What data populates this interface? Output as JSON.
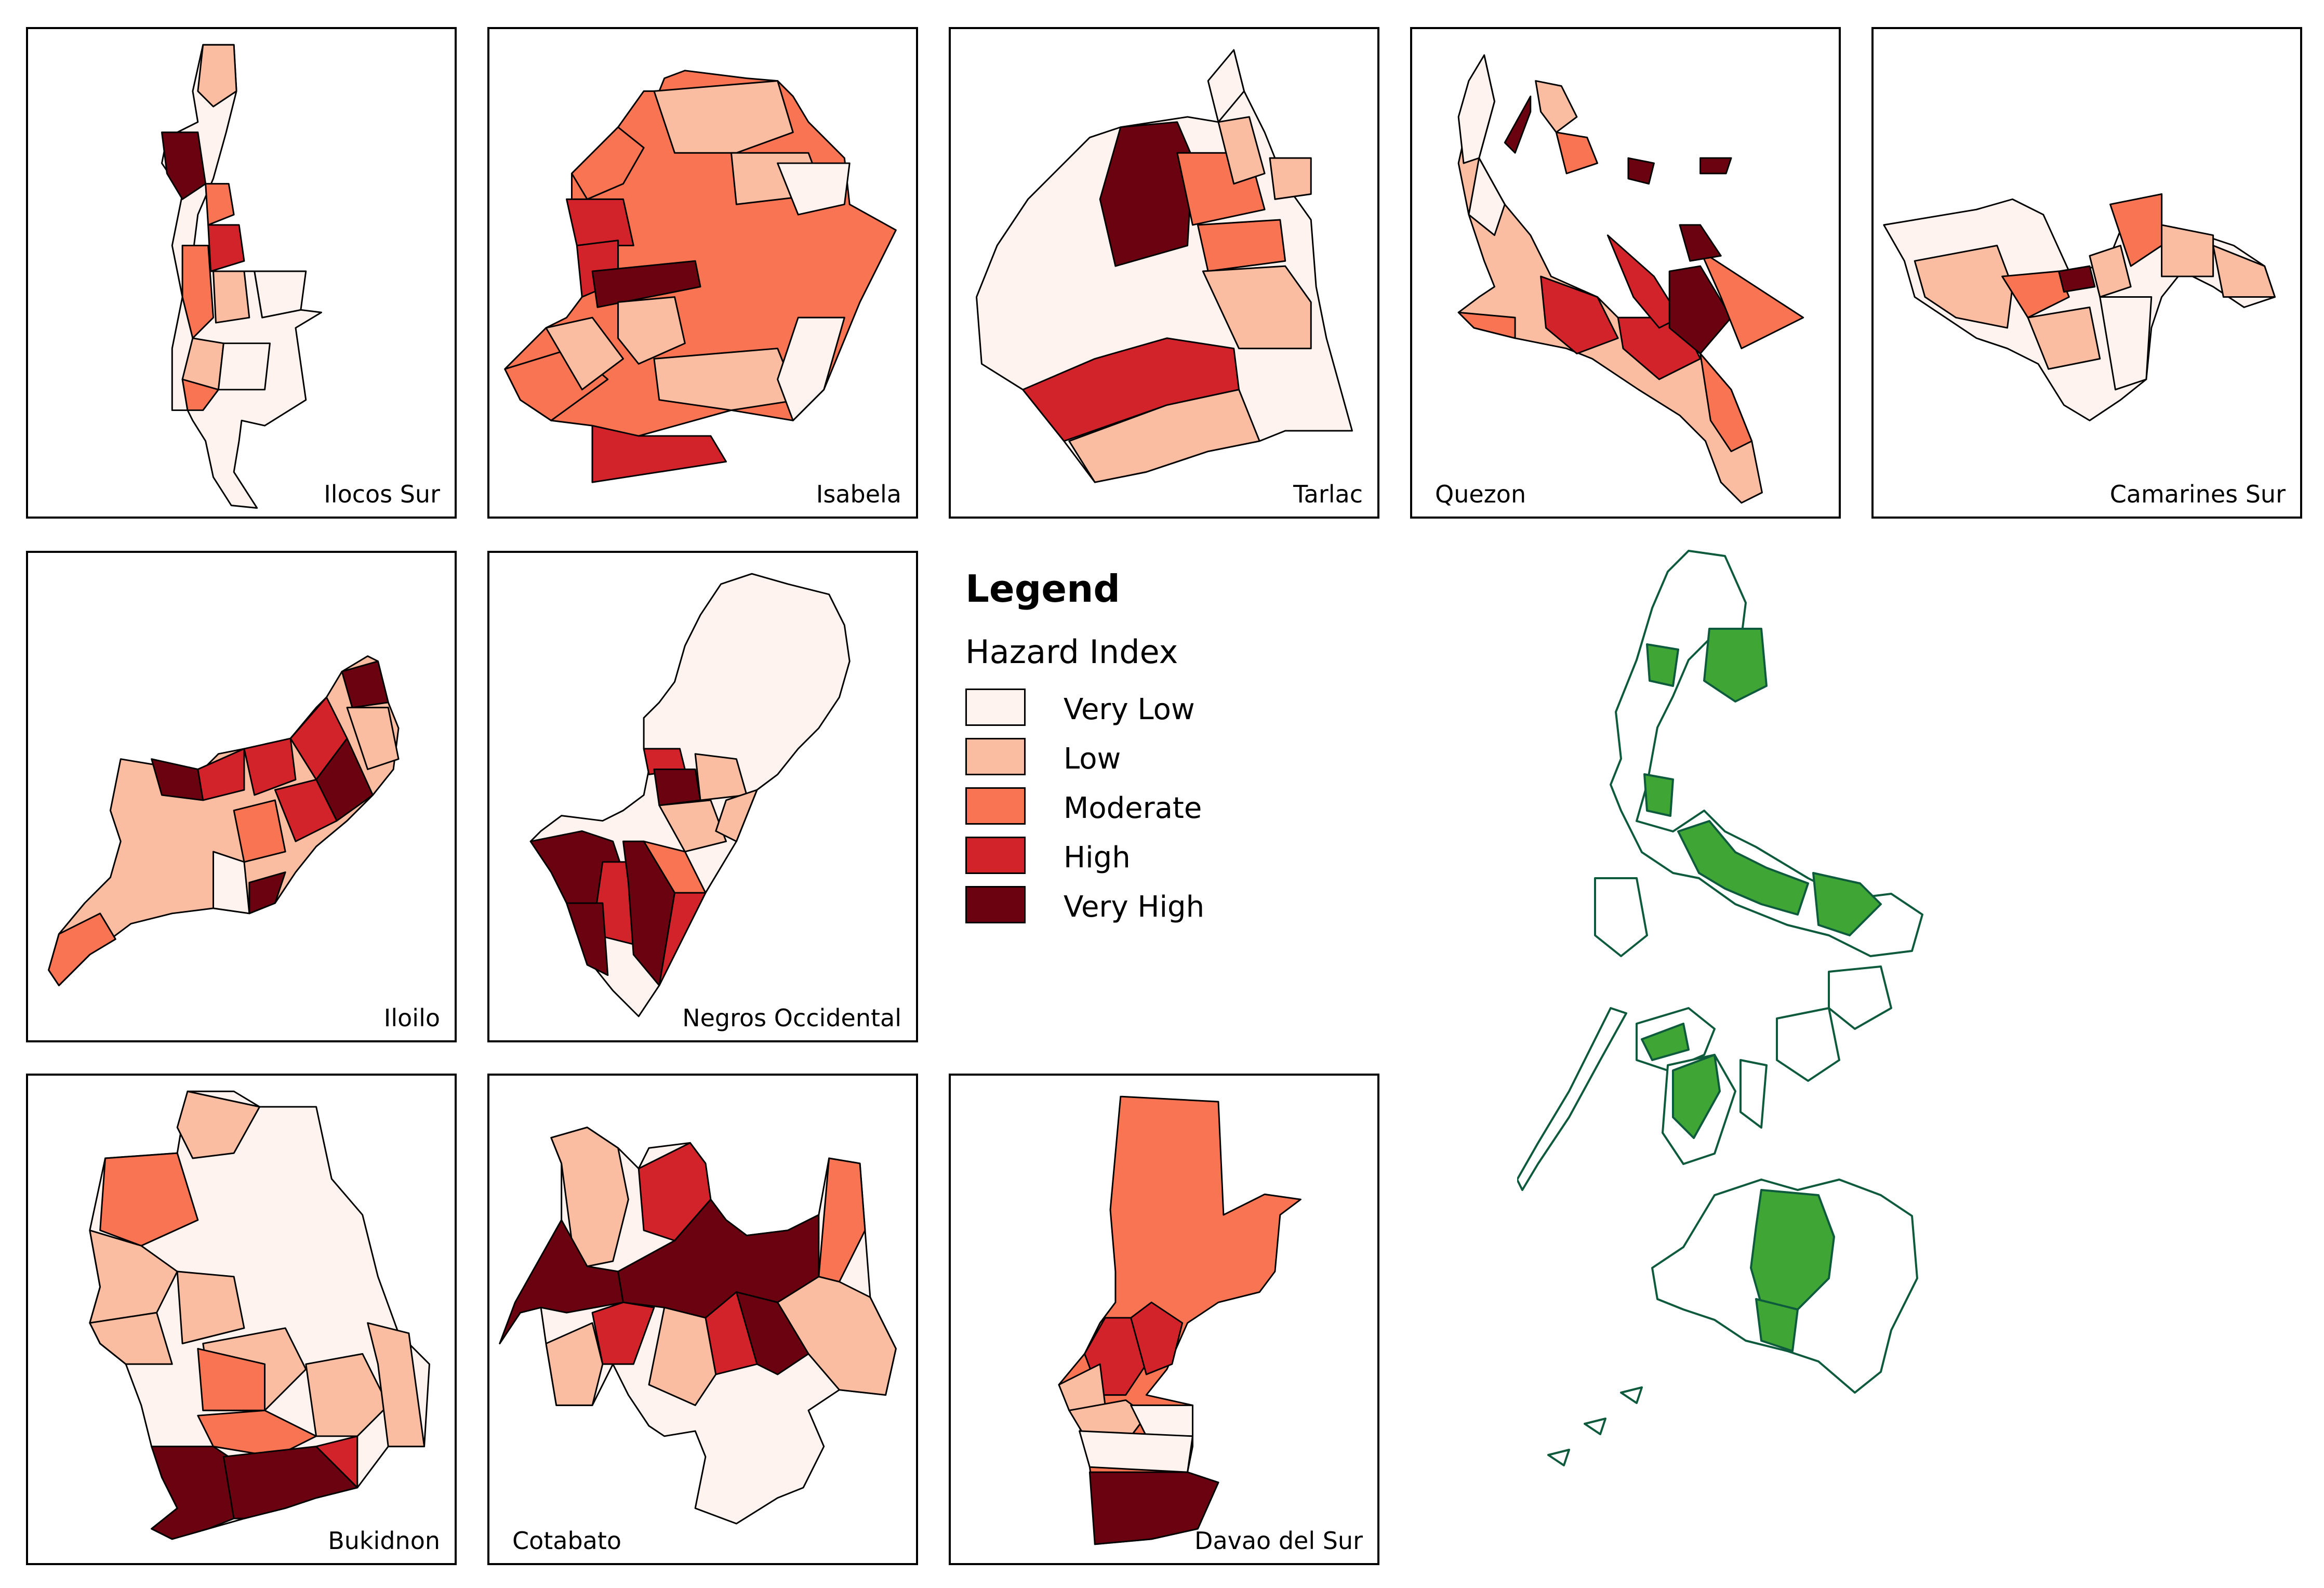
{
  "legend": {
    "title": "Legend",
    "subtitle": "Hazard Index",
    "items": [
      {
        "label": "Very Low",
        "color": "#fef3ee"
      },
      {
        "label": "Low",
        "color": "#fbbda2"
      },
      {
        "label": "Moderate",
        "color": "#f87453"
      },
      {
        "label": "High",
        "color": "#d3232a"
      },
      {
        "label": "Very High",
        "color": "#6b020f"
      }
    ]
  },
  "panels": [
    {
      "label": "Ilocos Sur"
    },
    {
      "label": "Isabela"
    },
    {
      "label": "Tarlac"
    },
    {
      "label": "Quezon"
    },
    {
      "label": "Camarines Sur"
    },
    {
      "label": "Iloilo"
    },
    {
      "label": "Negros Occidental"
    },
    {
      "label": "Bukidnon"
    },
    {
      "label": "Cotabato"
    },
    {
      "label": "Davao del Sur"
    }
  ],
  "overview": {
    "highlight_color": "#3fa535",
    "outline_color": "#0e5a3c"
  }
}
